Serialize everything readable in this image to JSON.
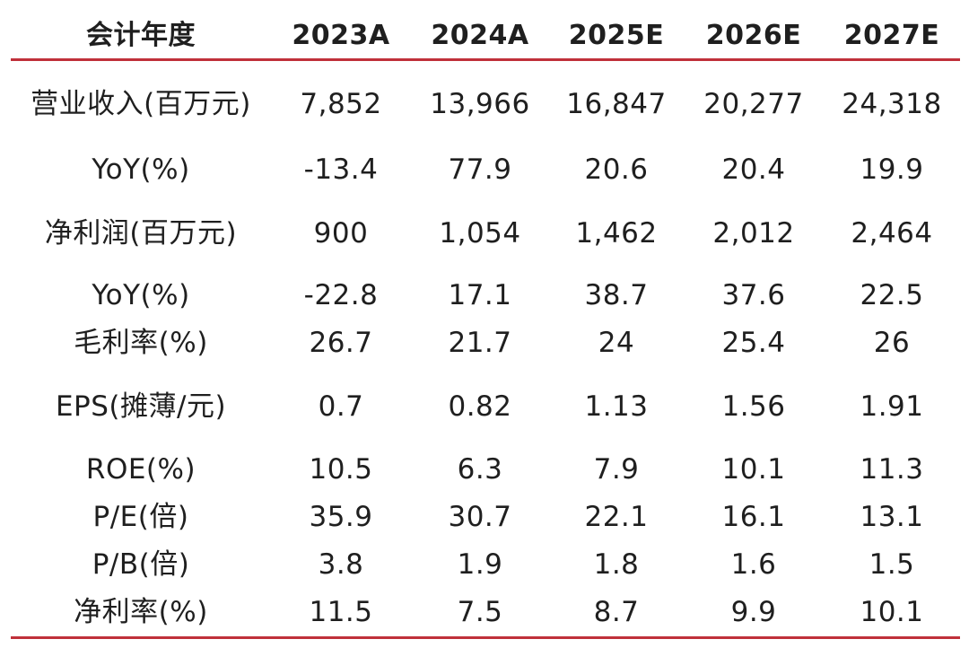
{
  "colors": {
    "rule": "#c0303a",
    "text": "#1f1f1f"
  },
  "header": [
    "会计年度",
    "2023A",
    "2024A",
    "2025E",
    "2026E",
    "2027E"
  ],
  "rows": [
    [
      "营业收入(百万元)",
      "7,852",
      "13,966",
      "16,847",
      "20,277",
      "24,318"
    ],
    [
      "YoY(%)",
      "-13.4",
      "77.9",
      "20.6",
      "20.4",
      "19.9"
    ],
    [
      "净利润(百万元)",
      "900",
      "1,054",
      "1,462",
      "2,012",
      "2,464"
    ],
    [
      "YoY(%)",
      "-22.8",
      "17.1",
      "38.7",
      "37.6",
      "22.5"
    ],
    [
      "毛利率(%)",
      "26.7",
      "21.7",
      "24",
      "25.4",
      "26"
    ],
    [
      "EPS(摊薄/元)",
      "0.7",
      "0.82",
      "1.13",
      "1.56",
      "1.91"
    ],
    [
      "ROE(%)",
      "10.5",
      "6.3",
      "7.9",
      "10.1",
      "11.3"
    ],
    [
      "P/E(倍)",
      "35.9",
      "30.7",
      "22.1",
      "16.1",
      "13.1"
    ],
    [
      "P/B(倍)",
      "3.8",
      "1.9",
      "1.8",
      "1.6",
      "1.5"
    ],
    [
      "净利率(%)",
      "11.5",
      "7.5",
      "8.7",
      "9.9",
      "10.1"
    ]
  ]
}
